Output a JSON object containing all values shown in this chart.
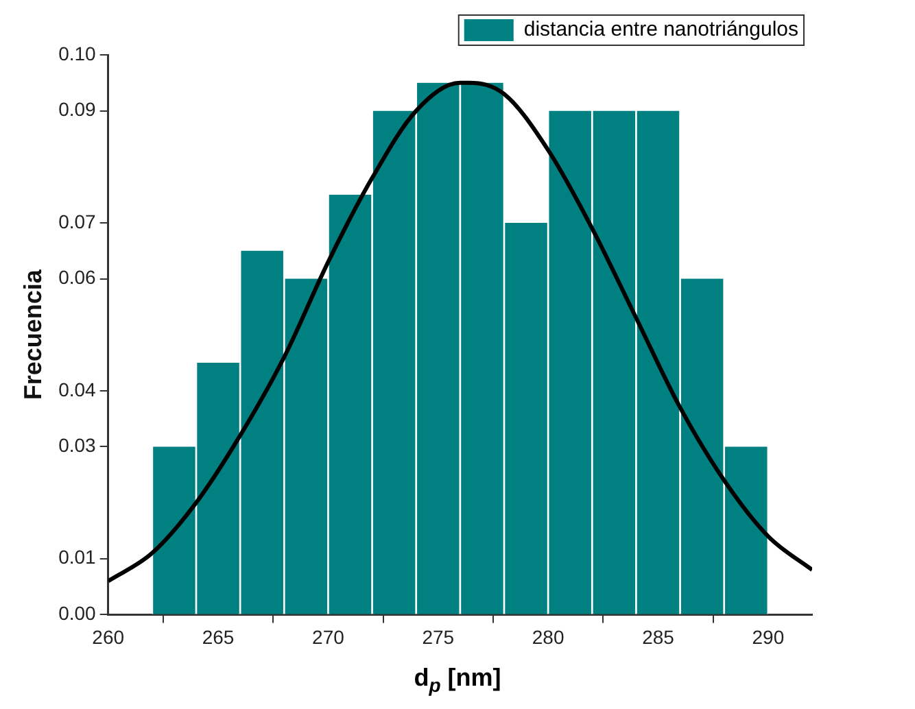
{
  "chart_data": {
    "type": "histogram",
    "xlabel": "d$_{p}$ [nm]",
    "ylabel": "Frecuencia",
    "bins": [
      262,
      264,
      266,
      268,
      270,
      272,
      274,
      276,
      278,
      280,
      282,
      284,
      286,
      288,
      290
    ],
    "series": [
      {
        "name": "distancia entre nanotriángulos",
        "color": "#008080",
        "values": [
          0.03,
          0.045,
          0.065,
          0.06,
          0.075,
          0.09,
          0.095,
          0.095,
          0.07,
          0.09,
          0.09,
          0.09,
          0.06,
          0.03
        ]
      },
      {
        "type": "line",
        "color": "#000000",
        "x": [
          260,
          262,
          264,
          266,
          268,
          270,
          272,
          274,
          276,
          276.4,
          278,
          280,
          282,
          284,
          286,
          288,
          290,
          292
        ],
        "values": [
          0.006,
          0.011,
          0.02,
          0.032,
          0.046,
          0.063,
          0.078,
          0.09,
          0.095,
          0.095,
          0.093,
          0.083,
          0.069,
          0.053,
          0.037,
          0.024,
          0.014,
          0.008
        ]
      }
    ],
    "xlim": [
      260,
      292
    ],
    "xticks": [
      260,
      265,
      270,
      275,
      280,
      285,
      290
    ],
    "ylim": [
      0,
      0.1
    ],
    "yticks": [
      {
        "value": 0,
        "label": "0.00"
      },
      {
        "value": 0.01,
        "label": "0.01"
      },
      {
        "value": 0.03,
        "label": "0.03"
      },
      {
        "value": 0.04,
        "label": "0.04"
      },
      {
        "value": 0.06,
        "label": "0.06"
      },
      {
        "value": 0.07,
        "label": "0.07"
      },
      {
        "value": 0.09,
        "label": "0.09"
      },
      {
        "value": 0.1,
        "label": "0.10"
      }
    ],
    "legend": "top right"
  }
}
